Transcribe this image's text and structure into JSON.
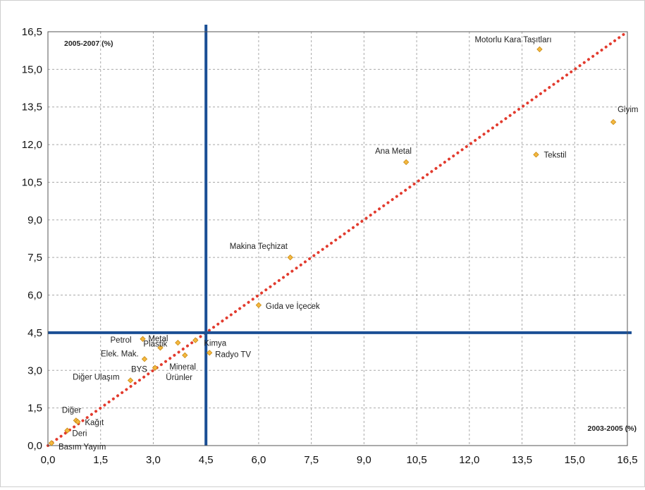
{
  "chart_data": {
    "type": "scatter",
    "xlabel": "2003-2005 (%)",
    "ylabel": "2005-2007 (%)",
    "xlim": [
      0,
      16.5
    ],
    "ylim": [
      0,
      16.5
    ],
    "xticks": [
      "0,0",
      "1,5",
      "3,0",
      "4,5",
      "6,0",
      "7,5",
      "9,0",
      "10,5",
      "12,0",
      "13,5",
      "15,0",
      "16,5"
    ],
    "yticks": [
      "0,0",
      "1,5",
      "3,0",
      "4,5",
      "6,0",
      "7,5",
      "9,0",
      "10,5",
      "12,0",
      "13,5",
      "15,0",
      "16,5"
    ],
    "grid": true,
    "reference_lines": {
      "x": 4.5,
      "y": 4.5,
      "diagonal": "y = x"
    },
    "points": [
      {
        "label": "Motorlu Kara Taşıtları",
        "x": 14.0,
        "y": 15.8
      },
      {
        "label": "Giyim",
        "x": 16.1,
        "y": 12.9
      },
      {
        "label": "Tekstil",
        "x": 13.9,
        "y": 11.6
      },
      {
        "label": "Ana Metal",
        "x": 10.2,
        "y": 11.3
      },
      {
        "label": "Makina Teçhizat",
        "x": 6.9,
        "y": 7.5
      },
      {
        "label": "Gıda ve İçecek",
        "x": 6.0,
        "y": 5.6
      },
      {
        "label": "Kimya",
        "x": 4.2,
        "y": 4.2
      },
      {
        "label": "Radyo TV",
        "x": 4.6,
        "y": 3.7
      },
      {
        "label": "Mineral Ürünler",
        "x": 3.9,
        "y": 3.6
      },
      {
        "label": "Metal",
        "x": 3.7,
        "y": 4.1
      },
      {
        "label": "Petrol",
        "x": 2.7,
        "y": 4.25
      },
      {
        "label": "Plastik",
        "x": 3.2,
        "y": 3.9
      },
      {
        "label": "Elek. Mak.",
        "x": 2.75,
        "y": 3.45
      },
      {
        "label": "BYS",
        "x": 3.05,
        "y": 3.1
      },
      {
        "label": "Diğer Ulaşım",
        "x": 2.35,
        "y": 2.6
      },
      {
        "label": "Diğer",
        "x": 0.8,
        "y": 1.0
      },
      {
        "label": "Kağıt",
        "x": 0.85,
        "y": 0.95
      },
      {
        "label": "Deri",
        "x": 0.55,
        "y": 0.6
      },
      {
        "label": "Basım Yayım",
        "x": 0.1,
        "y": 0.1
      }
    ],
    "colors": {
      "marker_fill": "#f4b840",
      "marker_stroke": "#c98a10",
      "reference": "#1b4f95",
      "diagonal": "#e23b2e",
      "grid": "#a9a9a9"
    }
  }
}
